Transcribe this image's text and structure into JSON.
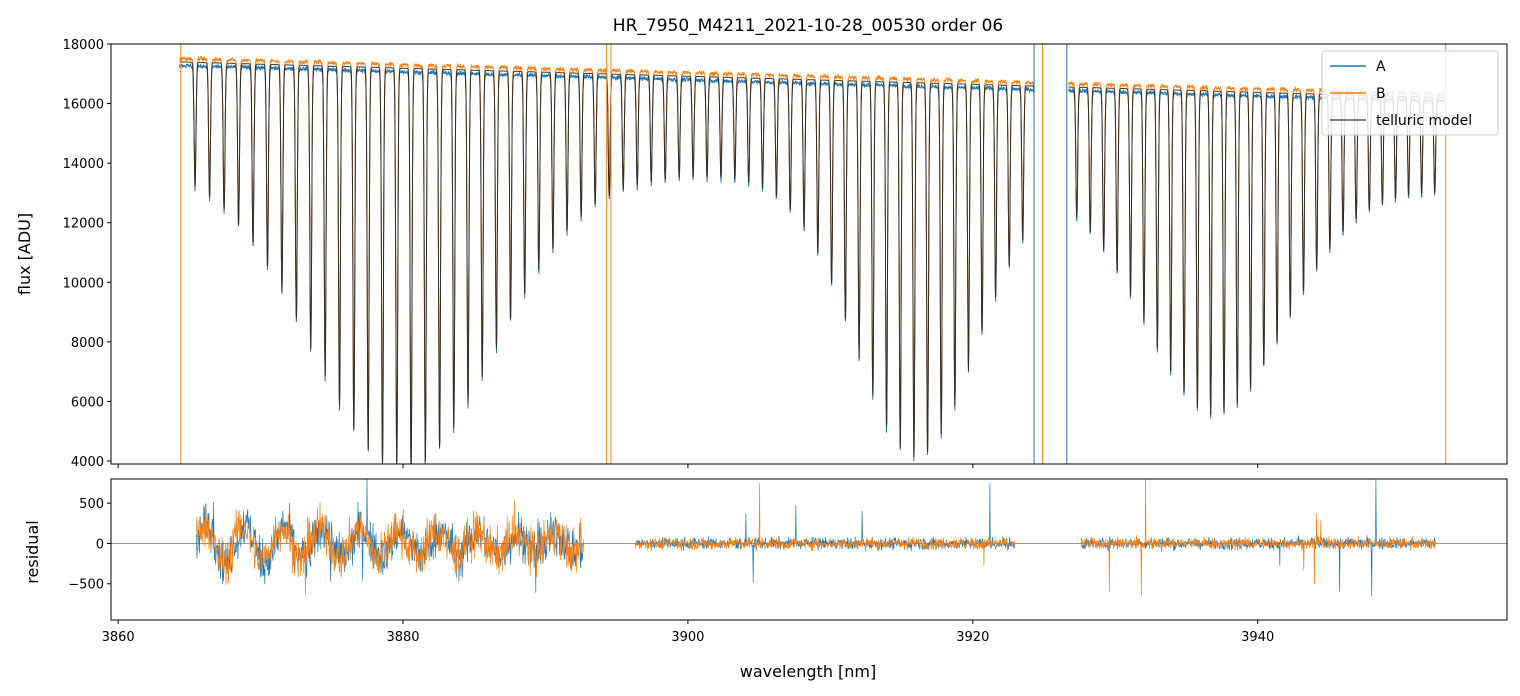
{
  "chart_data": [
    {
      "type": "line",
      "title": "HR_7950_M4211_2021-10-28_00530  order 06",
      "ylabel": "flux [ADU]",
      "xlabel": "",
      "xlim": [
        3859.5,
        3957.5
      ],
      "ylim": [
        3900,
        18000
      ],
      "xticks": [
        3860,
        3880,
        3900,
        3920,
        3940
      ],
      "xtick_labels_shown": false,
      "yticks": [
        4000,
        6000,
        8000,
        10000,
        12000,
        14000,
        16000,
        18000
      ],
      "ytick_labels": [
        "4000",
        "6000",
        "8000",
        "10000",
        "12000",
        "14000",
        "16000",
        "18000"
      ],
      "grid": false,
      "legend": "top-right",
      "series": [
        {
          "name": "A",
          "color": "#1f77b4"
        },
        {
          "name": "B",
          "color": "#ff7f0e"
        },
        {
          "name": "telluric model",
          "color": "#000000"
        }
      ],
      "x_range_data": [
        3864.3,
        3953.1
      ],
      "continuum_left": 17400,
      "continuum_right": 16200,
      "absorption_line_depth_min": 4000,
      "data_gaps": [
        [
          3924.3,
          3926.7
        ]
      ]
    },
    {
      "type": "line",
      "title": "",
      "ylabel": "residual",
      "xlabel": "wavelength [nm]",
      "xlim": [
        3859.5,
        3957.5
      ],
      "ylim": [
        -950,
        800
      ],
      "xticks": [
        3860,
        3880,
        3900,
        3920,
        3940
      ],
      "xtick_labels": [
        "3860",
        "3880",
        "3900",
        "3920",
        "3940"
      ],
      "yticks": [
        -500,
        0,
        500
      ],
      "ytick_labels": [
        "−500",
        "0",
        "500"
      ],
      "grid": false,
      "zero_line": 0,
      "series": [
        {
          "name": "A",
          "color": "#1f77b4"
        },
        {
          "name": "B",
          "color": "#ff7f0e"
        }
      ],
      "segments": [
        [
          3865.5,
          3892.7
        ],
        [
          3896.3,
          3923.0
        ],
        [
          3927.6,
          3952.5
        ]
      ]
    }
  ]
}
